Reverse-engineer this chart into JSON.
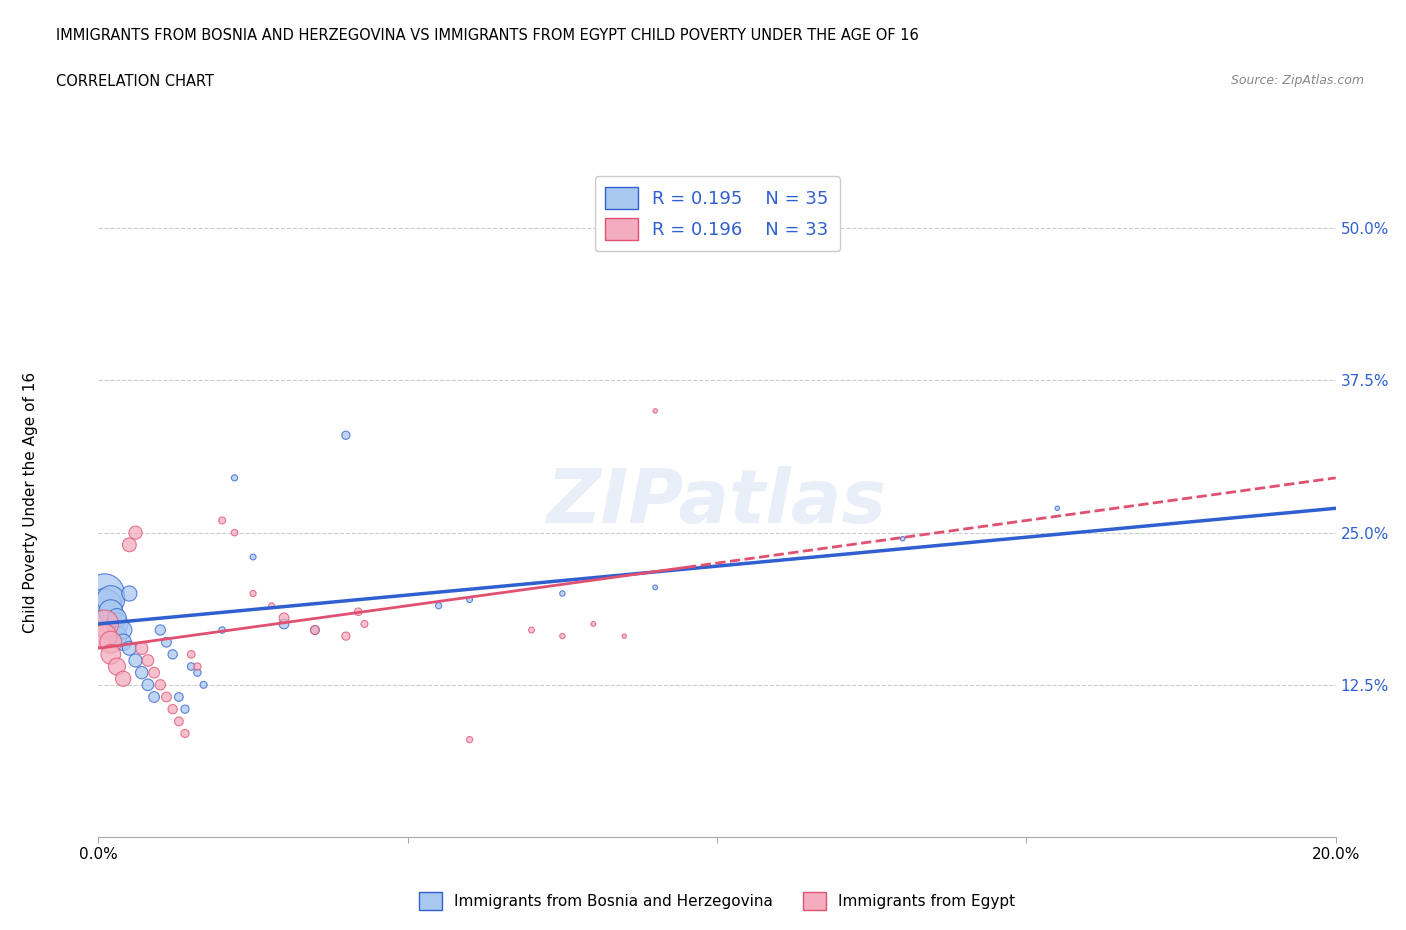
{
  "title_line1": "IMMIGRANTS FROM BOSNIA AND HERZEGOVINA VS IMMIGRANTS FROM EGYPT CHILD POVERTY UNDER THE AGE OF 16",
  "title_line2": "CORRELATION CHART",
  "source": "Source: ZipAtlas.com",
  "ylabel": "Child Poverty Under the Age of 16",
  "xlim": [
    0.0,
    0.2
  ],
  "ylim": [
    0.0,
    0.55
  ],
  "ytick_positions": [
    0.125,
    0.25,
    0.375,
    0.5
  ],
  "ytick_labels": [
    "12.5%",
    "25.0%",
    "37.5%",
    "50.0%"
  ],
  "grid_color": "#cccccc",
  "legend_r1": "R = 0.195",
  "legend_n1": "N = 35",
  "legend_r2": "R = 0.196",
  "legend_n2": "N = 33",
  "watermark": "ZIPatlas",
  "blue_color": "#a8c8f0",
  "pink_color": "#f4adc0",
  "blue_line_color": "#3060d0",
  "pink_line_color": "#e05070",
  "bosnia_x": [
    0.001,
    0.001,
    0.002,
    0.002,
    0.003,
    0.003,
    0.003,
    0.004,
    0.004,
    0.005,
    0.005,
    0.006,
    0.007,
    0.008,
    0.009,
    0.01,
    0.011,
    0.012,
    0.013,
    0.014,
    0.015,
    0.016,
    0.017,
    0.02,
    0.022,
    0.025,
    0.03,
    0.035,
    0.04,
    0.055,
    0.06,
    0.075,
    0.09,
    0.13,
    0.155
  ],
  "bosnia_y": [
    0.2,
    0.19,
    0.195,
    0.185,
    0.175,
    0.165,
    0.18,
    0.17,
    0.16,
    0.2,
    0.155,
    0.145,
    0.135,
    0.125,
    0.115,
    0.17,
    0.16,
    0.15,
    0.115,
    0.105,
    0.14,
    0.135,
    0.125,
    0.17,
    0.295,
    0.23,
    0.175,
    0.17,
    0.33,
    0.19,
    0.195,
    0.2,
    0.205,
    0.245,
    0.27
  ],
  "bosnia_sizes": [
    800,
    600,
    400,
    300,
    250,
    200,
    180,
    160,
    140,
    120,
    100,
    90,
    80,
    70,
    60,
    55,
    50,
    45,
    40,
    35,
    30,
    28,
    25,
    22,
    20,
    18,
    50,
    40,
    35,
    20,
    18,
    15,
    12,
    10,
    10
  ],
  "egypt_x": [
    0.001,
    0.001,
    0.002,
    0.002,
    0.003,
    0.004,
    0.005,
    0.006,
    0.007,
    0.008,
    0.009,
    0.01,
    0.011,
    0.012,
    0.013,
    0.014,
    0.015,
    0.016,
    0.02,
    0.022,
    0.025,
    0.028,
    0.03,
    0.035,
    0.04,
    0.042,
    0.043,
    0.06,
    0.07,
    0.075,
    0.08,
    0.085,
    0.09
  ],
  "egypt_y": [
    0.175,
    0.165,
    0.16,
    0.15,
    0.14,
    0.13,
    0.24,
    0.25,
    0.155,
    0.145,
    0.135,
    0.125,
    0.115,
    0.105,
    0.095,
    0.085,
    0.15,
    0.14,
    0.26,
    0.25,
    0.2,
    0.19,
    0.18,
    0.17,
    0.165,
    0.185,
    0.175,
    0.08,
    0.17,
    0.165,
    0.175,
    0.165,
    0.35
  ],
  "egypt_sizes": [
    400,
    300,
    250,
    200,
    150,
    120,
    100,
    90,
    80,
    70,
    60,
    55,
    50,
    45,
    40,
    35,
    30,
    28,
    25,
    22,
    20,
    18,
    50,
    40,
    35,
    30,
    25,
    20,
    18,
    15,
    12,
    10,
    10
  ],
  "bosnia_trend": [
    0.175,
    0.27
  ],
  "egypt_trend_solid": [
    0.155,
    0.295
  ],
  "egypt_trend_dash_start": 0.095,
  "egypt_trend_dash_end": 0.2
}
